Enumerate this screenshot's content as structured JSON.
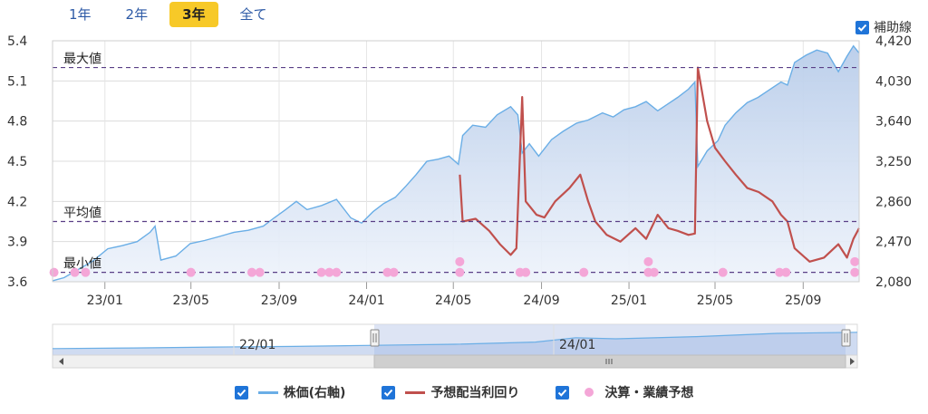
{
  "tabs": [
    {
      "label": "1年",
      "active": false
    },
    {
      "label": "2年",
      "active": false
    },
    {
      "label": "3年",
      "active": true
    },
    {
      "label": "全て",
      "active": false
    }
  ],
  "aux_toggle": {
    "label": "補助線",
    "checked": true
  },
  "legend": [
    {
      "label": "株価(右軸)",
      "checked": true,
      "color": "#6aaee6"
    },
    {
      "label": "予想配当利回り",
      "checked": true,
      "color": "#c0504d"
    },
    {
      "label": "決算・業績予想",
      "checked": true,
      "color": "#f4a6d7"
    }
  ],
  "reference_lines": [
    {
      "label": "最大値",
      "value": 5.2
    },
    {
      "label": "平均値",
      "value": 4.05
    },
    {
      "label": "最小値",
      "value": 3.67
    }
  ],
  "navigator_labels": [
    "22/01",
    "24/01"
  ],
  "chart_data": {
    "type": "line",
    "xlim": [
      "2022-10-20",
      "2025-11-18"
    ],
    "x_ticks": [
      "23/01",
      "23/05",
      "23/09",
      "24/01",
      "24/05",
      "24/09",
      "25/01",
      "25/05",
      "25/09"
    ],
    "left_axis": {
      "ticks": [
        3.6,
        3.9,
        4.2,
        4.5,
        4.8,
        5.1,
        5.4
      ],
      "ylim": [
        3.6,
        5.4
      ]
    },
    "right_axis": {
      "ticks": [
        "2,080",
        "2,470",
        "2,860",
        "3,250",
        "3,640",
        "4,030",
        "4,420"
      ],
      "ylim": [
        2080,
        4420
      ]
    },
    "series": [
      {
        "name": "株価(右軸)",
        "axis": "right",
        "kind": "area",
        "color": "#6aaee6",
        "points": [
          [
            "2022-10-20",
            2090
          ],
          [
            "2022-11-05",
            2120
          ],
          [
            "2022-11-25",
            2200
          ],
          [
            "2022-12-15",
            2280
          ],
          [
            "2023-01-05",
            2400
          ],
          [
            "2023-01-25",
            2430
          ],
          [
            "2023-02-15",
            2470
          ],
          [
            "2023-03-05",
            2560
          ],
          [
            "2023-03-12",
            2620
          ],
          [
            "2023-03-20",
            2290
          ],
          [
            "2023-04-10",
            2330
          ],
          [
            "2023-04-30",
            2450
          ],
          [
            "2023-05-20",
            2480
          ],
          [
            "2023-06-10",
            2520
          ],
          [
            "2023-06-30",
            2560
          ],
          [
            "2023-07-20",
            2580
          ],
          [
            "2023-08-10",
            2620
          ],
          [
            "2023-08-25",
            2700
          ],
          [
            "2023-09-10",
            2780
          ],
          [
            "2023-09-25",
            2860
          ],
          [
            "2023-10-10",
            2780
          ],
          [
            "2023-10-30",
            2820
          ],
          [
            "2023-11-20",
            2880
          ],
          [
            "2023-12-10",
            2700
          ],
          [
            "2023-12-25",
            2650
          ],
          [
            "2024-01-10",
            2760
          ],
          [
            "2024-01-25",
            2840
          ],
          [
            "2024-02-10",
            2900
          ],
          [
            "2024-02-25",
            3010
          ],
          [
            "2024-03-10",
            3120
          ],
          [
            "2024-03-25",
            3250
          ],
          [
            "2024-04-10",
            3270
          ],
          [
            "2024-04-25",
            3300
          ],
          [
            "2024-05-08",
            3220
          ],
          [
            "2024-05-14",
            3500
          ],
          [
            "2024-05-28",
            3600
          ],
          [
            "2024-06-15",
            3580
          ],
          [
            "2024-07-01",
            3700
          ],
          [
            "2024-07-20",
            3780
          ],
          [
            "2024-07-30",
            3700
          ],
          [
            "2024-08-05",
            3330
          ],
          [
            "2024-08-15",
            3420
          ],
          [
            "2024-08-28",
            3300
          ],
          [
            "2024-09-15",
            3460
          ],
          [
            "2024-10-01",
            3540
          ],
          [
            "2024-10-20",
            3620
          ],
          [
            "2024-11-05",
            3650
          ],
          [
            "2024-11-25",
            3720
          ],
          [
            "2024-12-10",
            3680
          ],
          [
            "2024-12-25",
            3750
          ],
          [
            "2025-01-10",
            3780
          ],
          [
            "2025-01-25",
            3830
          ],
          [
            "2025-02-10",
            3740
          ],
          [
            "2025-02-25",
            3810
          ],
          [
            "2025-03-10",
            3870
          ],
          [
            "2025-03-25",
            3950
          ],
          [
            "2025-04-03",
            4020
          ],
          [
            "2025-04-07",
            3200
          ],
          [
            "2025-04-20",
            3350
          ],
          [
            "2025-05-05",
            3450
          ],
          [
            "2025-05-15",
            3600
          ],
          [
            "2025-05-30",
            3720
          ],
          [
            "2025-06-15",
            3820
          ],
          [
            "2025-06-30",
            3870
          ],
          [
            "2025-07-15",
            3940
          ],
          [
            "2025-08-01",
            4020
          ],
          [
            "2025-08-10",
            3990
          ],
          [
            "2025-08-20",
            4210
          ],
          [
            "2025-09-05",
            4280
          ],
          [
            "2025-09-20",
            4330
          ],
          [
            "2025-10-05",
            4300
          ],
          [
            "2025-10-20",
            4120
          ],
          [
            "2025-11-01",
            4270
          ],
          [
            "2025-11-10",
            4370
          ],
          [
            "2025-11-18",
            4300
          ]
        ]
      },
      {
        "name": "予想配当利回り",
        "axis": "left",
        "kind": "line",
        "color": "#c0504d",
        "points": [
          [
            "2024-05-10",
            4.4
          ],
          [
            "2024-05-14",
            4.05
          ],
          [
            "2024-06-01",
            4.07
          ],
          [
            "2024-06-20",
            3.98
          ],
          [
            "2024-07-05",
            3.88
          ],
          [
            "2024-07-20",
            3.8
          ],
          [
            "2024-07-28",
            3.85
          ],
          [
            "2024-08-05",
            4.98
          ],
          [
            "2024-08-10",
            4.2
          ],
          [
            "2024-08-25",
            4.1
          ],
          [
            "2024-09-05",
            4.08
          ],
          [
            "2024-09-20",
            4.2
          ],
          [
            "2024-10-10",
            4.3
          ],
          [
            "2024-10-25",
            4.4
          ],
          [
            "2024-11-05",
            4.2
          ],
          [
            "2024-11-15",
            4.05
          ],
          [
            "2024-12-01",
            3.95
          ],
          [
            "2024-12-20",
            3.9
          ],
          [
            "2025-01-10",
            4.0
          ],
          [
            "2025-01-25",
            3.92
          ],
          [
            "2025-02-10",
            4.1
          ],
          [
            "2025-02-25",
            4.0
          ],
          [
            "2025-03-10",
            3.98
          ],
          [
            "2025-03-25",
            3.95
          ],
          [
            "2025-04-03",
            3.96
          ],
          [
            "2025-04-07",
            5.2
          ],
          [
            "2025-04-20",
            4.8
          ],
          [
            "2025-05-01",
            4.6
          ],
          [
            "2025-05-15",
            4.5
          ],
          [
            "2025-05-30",
            4.4
          ],
          [
            "2025-06-15",
            4.3
          ],
          [
            "2025-07-01",
            4.27
          ],
          [
            "2025-07-20",
            4.2
          ],
          [
            "2025-08-01",
            4.1
          ],
          [
            "2025-08-10",
            4.05
          ],
          [
            "2025-08-20",
            3.85
          ],
          [
            "2025-09-10",
            3.75
          ],
          [
            "2025-09-30",
            3.78
          ],
          [
            "2025-10-20",
            3.88
          ],
          [
            "2025-11-01",
            3.78
          ],
          [
            "2025-11-10",
            3.92
          ],
          [
            "2025-11-18",
            4.0
          ]
        ]
      },
      {
        "name": "決算・業績予想",
        "axis": "left",
        "kind": "scatter",
        "color": "#f4a6d7",
        "points": [
          [
            "2022-10-22",
            3.67
          ],
          [
            "2022-11-20",
            3.67
          ],
          [
            "2022-12-05",
            3.67
          ],
          [
            "2023-05-01",
            3.67
          ],
          [
            "2023-07-25",
            3.67
          ],
          [
            "2023-08-05",
            3.67
          ],
          [
            "2023-10-30",
            3.67
          ],
          [
            "2023-11-10",
            3.67
          ],
          [
            "2023-11-20",
            3.67
          ],
          [
            "2024-01-30",
            3.67
          ],
          [
            "2024-02-08",
            3.67
          ],
          [
            "2024-05-10",
            3.67
          ],
          [
            "2024-05-10",
            3.75
          ],
          [
            "2024-08-02",
            3.67
          ],
          [
            "2024-08-10",
            3.67
          ],
          [
            "2024-10-30",
            3.67
          ],
          [
            "2025-01-28",
            3.67
          ],
          [
            "2025-01-28",
            3.75
          ],
          [
            "2025-02-05",
            3.67
          ],
          [
            "2025-05-12",
            3.67
          ],
          [
            "2025-07-30",
            3.67
          ],
          [
            "2025-08-08",
            3.67
          ],
          [
            "2025-11-12",
            3.67
          ],
          [
            "2025-11-12",
            3.75
          ]
        ]
      }
    ]
  }
}
